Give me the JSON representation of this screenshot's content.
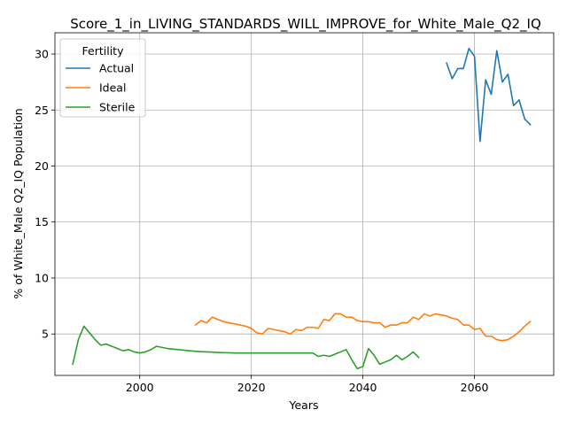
{
  "chart_data": {
    "type": "line",
    "title": "Score_1_in_LIVING_STANDARDS_WILL_IMPROVE_for_White_Male_Q2_IQ",
    "xlabel": "Years",
    "ylabel": "% of White_Male Q2_IQ Population",
    "xlim": [
      1984.8,
      2074.2
    ],
    "ylim": [
      1.3,
      31.9
    ],
    "xticks": [
      2000,
      2020,
      2040,
      2060
    ],
    "yticks": [
      5,
      10,
      15,
      20,
      25,
      30
    ],
    "grid": true,
    "legend": {
      "title": "Fertility",
      "position": "top-left"
    },
    "series": [
      {
        "name": "Actual",
        "color": "#1f77b4",
        "x": [
          2055,
          2056,
          2057,
          2058,
          2059,
          2060,
          2061,
          2062,
          2063,
          2064,
          2065,
          2066,
          2067,
          2068,
          2069,
          2070
        ],
        "y": [
          29.2,
          27.8,
          28.7,
          28.7,
          30.5,
          29.8,
          22.2,
          27.7,
          26.4,
          30.3,
          27.5,
          28.2,
          25.4,
          25.9,
          24.2,
          23.7
        ]
      },
      {
        "name": "Ideal",
        "color": "#ff7f0e",
        "x": [
          2010,
          2011,
          2012,
          2013,
          2014,
          2015,
          2016,
          2017,
          2018,
          2019,
          2020,
          2021,
          2022,
          2023,
          2024,
          2025,
          2026,
          2027,
          2028,
          2029,
          2030,
          2031,
          2032,
          2033,
          2034,
          2035,
          2036,
          2037,
          2038,
          2039,
          2040,
          2041,
          2042,
          2043,
          2044,
          2045,
          2046,
          2047,
          2048,
          2049,
          2050,
          2051,
          2052,
          2053,
          2054,
          2055,
          2056,
          2057,
          2058,
          2059,
          2060,
          2061,
          2062,
          2063,
          2064,
          2065,
          2066,
          2067,
          2068,
          2069,
          2070
        ],
        "y": [
          5.8,
          6.2,
          6.0,
          6.5,
          6.3,
          6.1,
          6.0,
          5.9,
          5.8,
          5.7,
          5.5,
          5.1,
          5.0,
          5.5,
          5.4,
          5.3,
          5.2,
          5.0,
          5.4,
          5.3,
          5.6,
          5.6,
          5.5,
          6.3,
          6.2,
          6.8,
          6.8,
          6.5,
          6.5,
          6.2,
          6.1,
          6.1,
          6.0,
          6.0,
          5.6,
          5.8,
          5.8,
          6.0,
          6.0,
          6.5,
          6.3,
          6.8,
          6.6,
          6.8,
          6.7,
          6.6,
          6.4,
          6.3,
          5.8,
          5.8,
          5.4,
          5.5,
          4.8,
          4.8,
          4.5,
          4.4,
          4.5,
          4.8,
          5.2,
          5.7,
          6.1
        ]
      },
      {
        "name": "Sterile",
        "color": "#2ca02c",
        "x": [
          1988,
          1989,
          1990,
          1991,
          1992,
          1993,
          1994,
          1995,
          1996,
          1997,
          1998,
          1999,
          2000,
          2001,
          2002,
          2003,
          2004,
          2005,
          2006,
          2007,
          2008,
          2009,
          2010,
          2011,
          2012,
          2013,
          2014,
          2015,
          2016,
          2017,
          2018,
          2019,
          2020,
          2021,
          2022,
          2023,
          2024,
          2025,
          2026,
          2027,
          2028,
          2029,
          2030,
          2031,
          2032,
          2033,
          2034,
          2035,
          2036,
          2037,
          2038,
          2039,
          2040,
          2041,
          2042,
          2043,
          2044,
          2045,
          2046,
          2047,
          2048,
          2049,
          2050
        ],
        "y": [
          2.3,
          4.5,
          5.7,
          5.1,
          4.5,
          4.0,
          4.1,
          3.9,
          3.7,
          3.5,
          3.6,
          3.4,
          3.3,
          3.4,
          3.6,
          3.9,
          3.8,
          3.7,
          3.65,
          3.6,
          3.55,
          3.5,
          3.45,
          3.42,
          3.4,
          3.38,
          3.35,
          3.33,
          3.32,
          3.3,
          3.3,
          3.3,
          3.3,
          3.3,
          3.3,
          3.3,
          3.3,
          3.3,
          3.3,
          3.3,
          3.3,
          3.3,
          3.3,
          3.3,
          3.0,
          3.1,
          3.0,
          3.2,
          3.4,
          3.6,
          2.7,
          1.9,
          2.1,
          3.7,
          3.1,
          2.3,
          2.5,
          2.7,
          3.1,
          2.7,
          3.0,
          3.4,
          2.9
        ]
      }
    ]
  }
}
